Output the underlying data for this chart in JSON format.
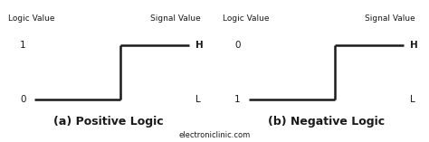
{
  "bg_color": "#ffffff",
  "line_color": "#1a1a1a",
  "text_color": "#1a1a1a",
  "title_a": "(a) Positive Logic",
  "title_b": "(b) Negative Logic",
  "footer": "electroniclinic.com",
  "lw": 1.8,
  "panel_left": {
    "label_lv": "Logic Value",
    "label_sv": "Signal Value",
    "val_high": "1",
    "val_low": "0",
    "sig_H": "H",
    "sig_L": "L"
  },
  "panel_right": {
    "label_lv": "Logic Value",
    "label_sv": "Signal Value",
    "val_high": "0",
    "val_low": "1",
    "sig_H": "H",
    "sig_L": "L"
  }
}
